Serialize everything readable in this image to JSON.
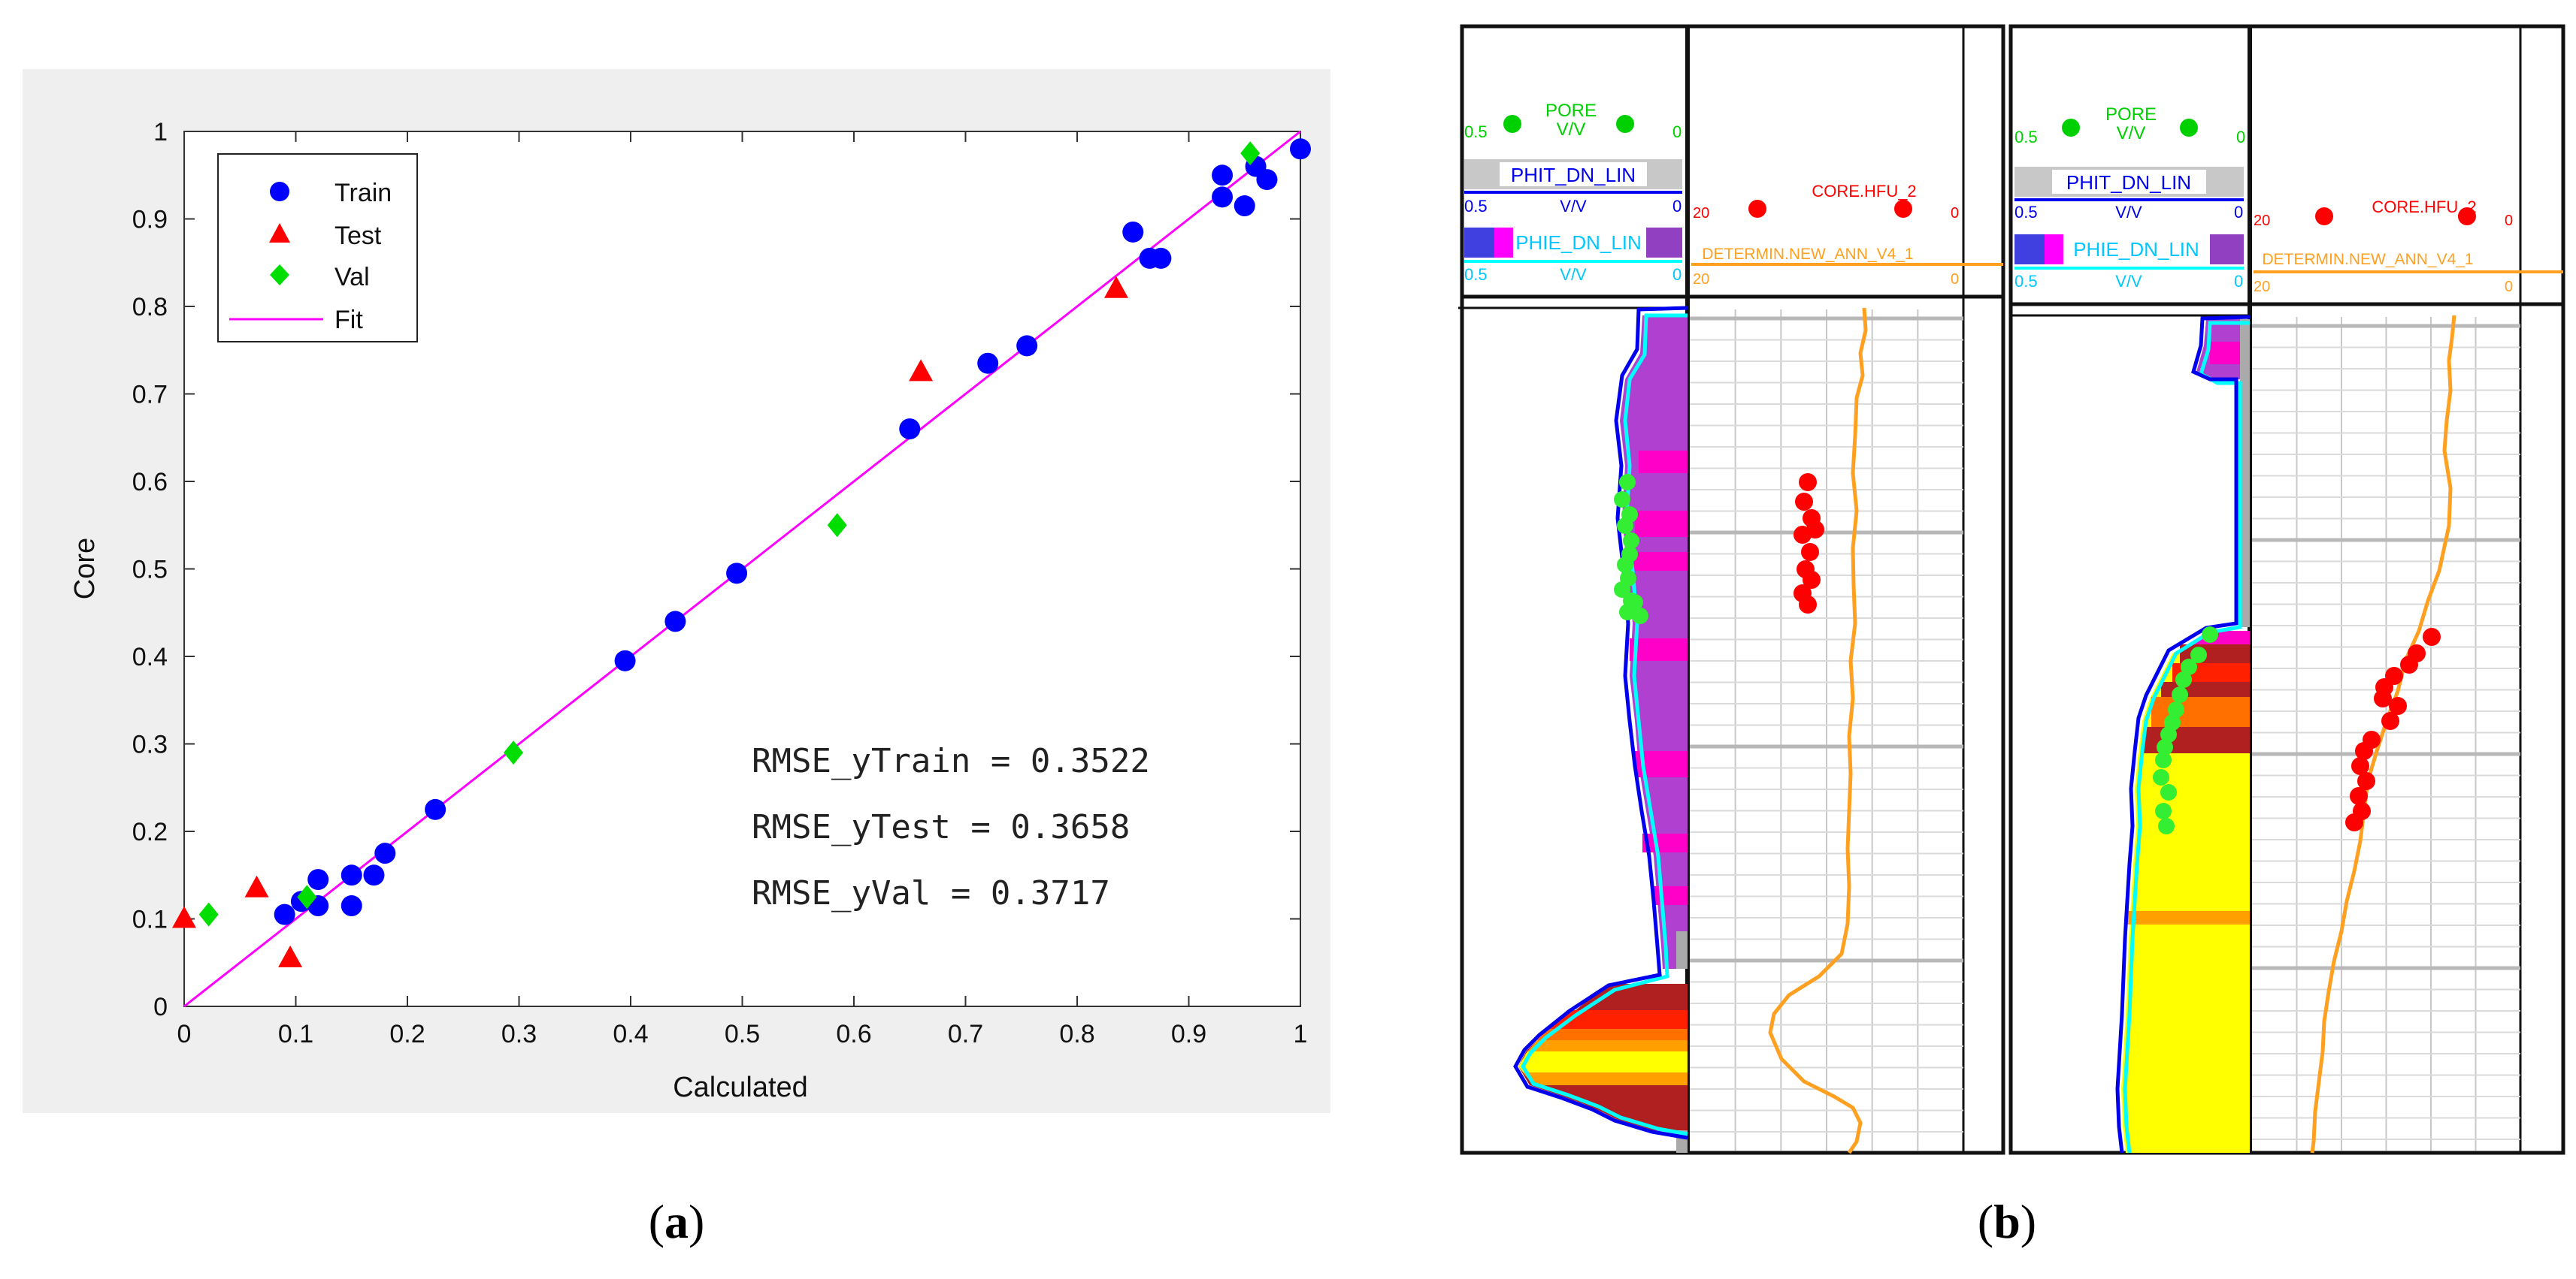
{
  "chart_data": [
    {
      "type": "scatter",
      "panel": "(a)",
      "xlabel": "Calculated",
      "ylabel": "Core",
      "xlim": [
        0,
        1
      ],
      "ylim": [
        0,
        1
      ],
      "xticks": [
        "0",
        "0.1",
        "0.2",
        "0.3",
        "0.4",
        "0.5",
        "0.6",
        "0.7",
        "0.8",
        "0.9",
        "1"
      ],
      "yticks": [
        "0",
        "0.1",
        "0.2",
        "0.3",
        "0.4",
        "0.5",
        "0.6",
        "0.7",
        "0.8",
        "0.9",
        "1"
      ],
      "legend_position": "top-left",
      "series": [
        {
          "name": "Train",
          "marker": "circle",
          "color": "#0000ff",
          "points": [
            [
              0.09,
              0.105
            ],
            [
              0.105,
              0.12
            ],
            [
              0.12,
              0.115
            ],
            [
              0.12,
              0.145
            ],
            [
              0.15,
              0.115
            ],
            [
              0.15,
              0.15
            ],
            [
              0.17,
              0.15
            ],
            [
              0.18,
              0.175
            ],
            [
              0.225,
              0.225
            ],
            [
              0.395,
              0.395
            ],
            [
              0.44,
              0.44
            ],
            [
              0.495,
              0.495
            ],
            [
              0.65,
              0.66
            ],
            [
              0.72,
              0.735
            ],
            [
              0.755,
              0.755
            ],
            [
              0.85,
              0.885
            ],
            [
              0.865,
              0.855
            ],
            [
              0.875,
              0.855
            ],
            [
              0.93,
              0.925
            ],
            [
              0.93,
              0.95
            ],
            [
              0.95,
              0.915
            ],
            [
              0.96,
              0.96
            ],
            [
              0.97,
              0.945
            ],
            [
              1.0,
              0.98
            ]
          ]
        },
        {
          "name": "Test",
          "marker": "triangle",
          "color": "#ff0000",
          "points": [
            [
              0.0,
              0.1
            ],
            [
              0.065,
              0.135
            ],
            [
              0.095,
              0.055
            ],
            [
              0.66,
              0.725
            ],
            [
              0.835,
              0.82
            ]
          ]
        },
        {
          "name": "Val",
          "marker": "diamond",
          "color": "#00dd00",
          "points": [
            [
              0.022,
              0.105
            ],
            [
              0.11,
              0.125
            ],
            [
              0.295,
              0.29
            ],
            [
              0.585,
              0.55
            ],
            [
              0.955,
              0.975
            ]
          ]
        },
        {
          "name": "Fit",
          "marker": "line",
          "color": "#ff00ff",
          "points": [
            [
              0,
              0
            ],
            [
              1,
              1
            ]
          ]
        }
      ],
      "annotations": [
        "RMSE_yTrain = 0.3522",
        "RMSE_yTest = 0.3658",
        "RMSE_yVal = 0.3717"
      ]
    },
    {
      "type": "line",
      "panel": "(b)",
      "description_tracks": [
        "porosity track",
        "HFU track"
      ],
      "wells": [
        {
          "pore_header": "PORE",
          "pore_unit": "V/V",
          "pore_left": "0.5",
          "pore_right": "0",
          "phit_header": "PHIT_DN_LIN",
          "phit_unit": "V/V",
          "phit_left": "0.5",
          "phit_right": "0",
          "phie_header": "PHIE_DN_LIN",
          "phie_unit": "V/V",
          "phie_left": "0.5",
          "phie_right": "0",
          "core_header": "CORE.HFU_2",
          "core_left": "20",
          "core_right": "0",
          "ann_header": "DETERMIN.NEW_ANN_V4_1",
          "ann_left": "20",
          "ann_right": "0"
        },
        {
          "pore_header": "PORE",
          "pore_unit": "V/V",
          "pore_left": "0.5",
          "pore_right": "0",
          "phit_header": "PHIT_DN_LIN",
          "phit_unit": "V/V",
          "phit_left": "0.5",
          "phit_right": "0",
          "phie_header": "PHIE_DN_LIN",
          "phie_unit": "V/V",
          "phie_left": "0.5",
          "phie_right": "0",
          "core_header": "CORE.HFU_2",
          "core_left": "20",
          "core_right": "0",
          "ann_header": "DETERMIN.NEW_ANN_V4_1",
          "ann_left": "20",
          "ann_right": "0"
        }
      ]
    }
  ],
  "captions": {
    "a": "a",
    "b": "b"
  },
  "colors": {
    "train": "#0000ff",
    "test": "#ff0000",
    "val": "#00dd00",
    "fit": "#ff00ff",
    "pore": "#00e000",
    "phit": "#0000ff",
    "phie": "#00ffff",
    "core": "#ff0000",
    "ann": "#ffa020"
  }
}
